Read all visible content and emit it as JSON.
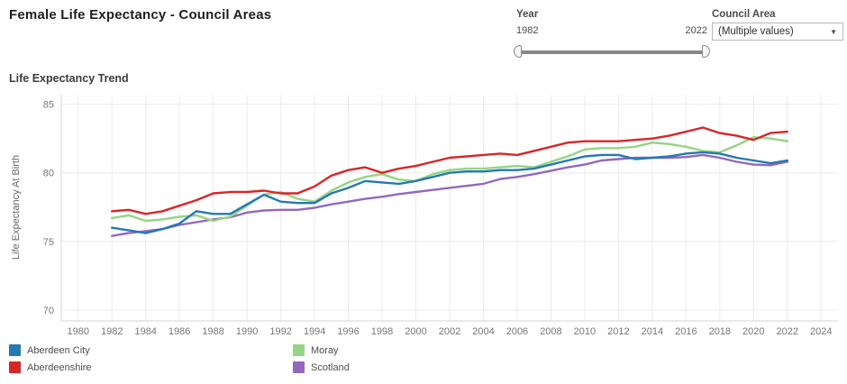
{
  "header": {
    "title": "Female Life Expectancy - Council Areas"
  },
  "controls": {
    "year_filter": {
      "label": "Year",
      "min": "1982",
      "max": "2022"
    },
    "council_filter": {
      "label": "Council Area",
      "value": "(Multiple values)",
      "caret_icon": "▼"
    }
  },
  "chart": {
    "title": "Life Expectancy Trend"
  },
  "chart_data": {
    "type": "line",
    "title": "Life Expectancy Trend",
    "xlabel": "",
    "ylabel": "Life Expectancy At Birth",
    "grid": true,
    "legend_position": "bottom",
    "xlim": [
      1979,
      2025
    ],
    "ylim": [
      69.2,
      85.7
    ],
    "x_ticks": [
      1980,
      1982,
      1984,
      1986,
      1988,
      1990,
      1992,
      1994,
      1996,
      1998,
      2000,
      2002,
      2004,
      2006,
      2008,
      2010,
      2012,
      2014,
      2016,
      2018,
      2020,
      2022,
      2024
    ],
    "y_ticks": [
      70,
      75,
      80,
      85
    ],
    "x": [
      1982,
      1983,
      1984,
      1985,
      1986,
      1987,
      1988,
      1989,
      1990,
      1991,
      1992,
      1993,
      1994,
      1995,
      1996,
      1997,
      1998,
      1999,
      2000,
      2001,
      2002,
      2003,
      2004,
      2005,
      2006,
      2007,
      2008,
      2009,
      2010,
      2011,
      2012,
      2013,
      2014,
      2015,
      2016,
      2017,
      2018,
      2019,
      2020,
      2021,
      2022
    ],
    "series": [
      {
        "name": "Aberdeen City",
        "color": "#2678b2",
        "values": [
          76.0,
          75.8,
          75.6,
          75.9,
          76.3,
          77.2,
          77.0,
          77.0,
          77.7,
          78.4,
          77.9,
          77.8,
          77.8,
          78.5,
          78.9,
          79.4,
          79.3,
          79.2,
          79.4,
          79.7,
          80.0,
          80.1,
          80.1,
          80.2,
          80.2,
          80.3,
          80.6,
          80.9,
          81.2,
          81.3,
          81.3,
          81.0,
          81.1,
          81.2,
          81.4,
          81.5,
          81.4,
          81.1,
          80.9,
          80.7,
          80.9
        ]
      },
      {
        "name": "Aberdeenshire",
        "color": "#d62728",
        "values": [
          77.2,
          77.3,
          77.0,
          77.2,
          77.6,
          78.0,
          78.5,
          78.6,
          78.6,
          78.7,
          78.5,
          78.5,
          79.0,
          79.8,
          80.2,
          80.4,
          80.0,
          80.3,
          80.5,
          80.8,
          81.1,
          81.2,
          81.3,
          81.4,
          81.3,
          81.6,
          81.9,
          82.2,
          82.3,
          82.3,
          82.3,
          82.4,
          82.5,
          82.7,
          83.0,
          83.3,
          82.9,
          82.7,
          82.4,
          82.9,
          83.0
        ]
      },
      {
        "name": "Moray",
        "color": "#94d583",
        "values": [
          76.7,
          76.9,
          76.5,
          76.6,
          76.8,
          76.9,
          76.5,
          76.8,
          77.6,
          78.4,
          78.6,
          78.1,
          77.9,
          78.7,
          79.3,
          79.7,
          79.9,
          79.5,
          79.4,
          79.9,
          80.2,
          80.3,
          80.3,
          80.4,
          80.5,
          80.4,
          80.8,
          81.2,
          81.7,
          81.8,
          81.8,
          81.9,
          82.2,
          82.1,
          81.9,
          81.6,
          81.5,
          82.0,
          82.6,
          82.5,
          82.3
        ]
      },
      {
        "name": "Scotland",
        "color": "#9467bd",
        "values": [
          75.4,
          75.6,
          75.75,
          75.9,
          76.2,
          76.4,
          76.6,
          76.75,
          77.1,
          77.25,
          77.3,
          77.3,
          77.45,
          77.7,
          77.9,
          78.1,
          78.25,
          78.45,
          78.6,
          78.75,
          78.9,
          79.05,
          79.2,
          79.55,
          79.7,
          79.9,
          80.15,
          80.4,
          80.6,
          80.9,
          81.0,
          81.1,
          81.1,
          81.1,
          81.15,
          81.3,
          81.1,
          80.8,
          80.6,
          80.55,
          80.8
        ]
      }
    ],
    "colors": {
      "grid": "#ebebeb",
      "axis": "#d4d4d4",
      "tick_text": "#777777"
    }
  }
}
